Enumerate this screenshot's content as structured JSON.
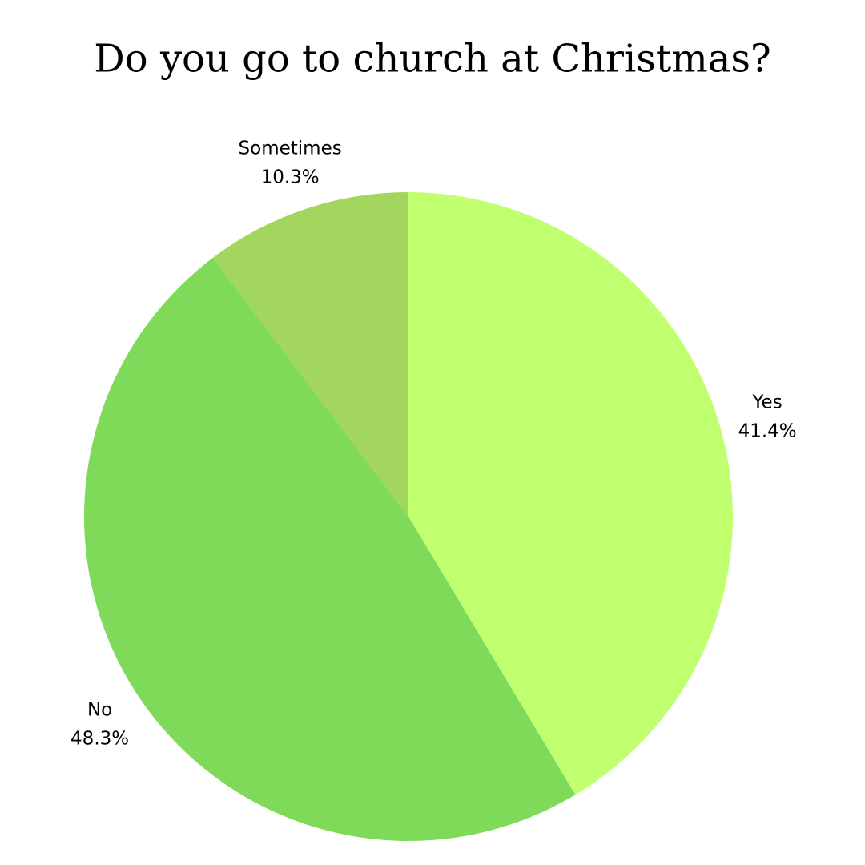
{
  "chart_data": {
    "type": "pie",
    "title": "Do you go to church at Christmas?",
    "categories": [
      "Yes",
      "No",
      "Sometimes"
    ],
    "values": [
      41.4,
      48.3,
      10.3
    ],
    "value_labels": [
      "41.4%",
      "48.3%",
      "10.3%"
    ],
    "colors": [
      "#c0ff6e",
      "#80da5a",
      "#a2d65e"
    ]
  }
}
